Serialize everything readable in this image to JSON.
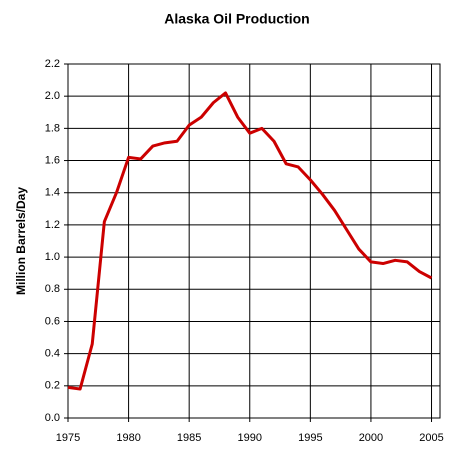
{
  "chart_data": {
    "type": "line",
    "title": "Alaska Oil Production",
    "y_label": "Million Barrels/Day",
    "x": [
      1975,
      1976,
      1977,
      1978,
      1979,
      1980,
      1981,
      1982,
      1983,
      1984,
      1985,
      1986,
      1987,
      1988,
      1989,
      1990,
      1991,
      1992,
      1993,
      1994,
      1995,
      1996,
      1997,
      1998,
      1999,
      2000,
      2001,
      2002,
      2003,
      2004,
      2005
    ],
    "series": [
      {
        "name": "Alaska Oil Production",
        "color": "#cc0000",
        "values": [
          0.19,
          0.18,
          0.46,
          1.22,
          1.4,
          1.62,
          1.61,
          1.69,
          1.71,
          1.72,
          1.82,
          1.87,
          1.96,
          2.02,
          1.87,
          1.77,
          1.8,
          1.72,
          1.58,
          1.56,
          1.48,
          1.39,
          1.29,
          1.17,
          1.05,
          0.97,
          0.96,
          0.98,
          0.97,
          0.91,
          0.87
        ]
      }
    ],
    "xlim": [
      1975,
      2005.7
    ],
    "xticks": [
      1975,
      1980,
      1985,
      1990,
      1995,
      2000,
      2005
    ],
    "ylim": [
      0,
      2.2
    ],
    "yticks": [
      {
        "value": 0,
        "label": "0.0"
      },
      0.2,
      0.4,
      0.6,
      0.8,
      {
        "value": 1,
        "label": "1.0"
      },
      1.2,
      1.4,
      1.6,
      1.8,
      {
        "value": 2,
        "label": "2.0"
      },
      2.2
    ],
    "grid": true
  }
}
